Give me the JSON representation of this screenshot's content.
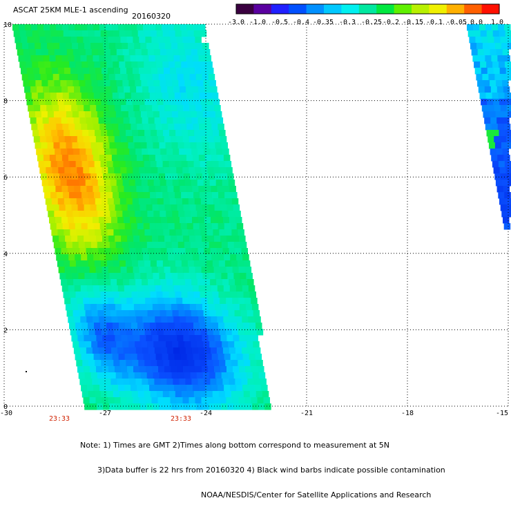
{
  "header": {
    "title": "ASCAT 25KM MLE-1 ascending",
    "date": "20160320"
  },
  "colorbar": {
    "tick_labels": [
      "-3.0",
      "-1.0",
      "-0.5",
      "-0.4",
      "-0.35",
      "-0.3",
      "-0.25",
      "-0.2",
      "-0.15",
      "-0.1",
      "-0.05",
      "0.0",
      "1.0"
    ],
    "colors": [
      "#3a0040",
      "#5a00a0",
      "#2020ff",
      "#0050ff",
      "#0090ff",
      "#00c8ff",
      "#00f0f0",
      "#00e8a0",
      "#00e840",
      "#60f000",
      "#b8f000",
      "#f0f000",
      "#ffb000",
      "#ff6000",
      "#ff1000"
    ]
  },
  "map": {
    "x_tick_labels": [
      "-30",
      "-27",
      "-24",
      "-21",
      "-18",
      "-15"
    ],
    "y_tick_labels": [
      "0",
      "2",
      "4",
      "6",
      "8",
      "10"
    ],
    "time_labels": [
      "23:33",
      "23:33"
    ],
    "lon_range": [
      -30,
      -15
    ],
    "lat_range": [
      0,
      10
    ],
    "gridlines": "dotted"
  },
  "note": {
    "line1": "Note: 1) Times are GMT 2)Times along bottom correspond to measurement at 5N",
    "line2": "3)Data buffer is 22 hrs from 20160320 4) Black wind barbs indicate possible contamination",
    "line3": "NOAA/NESDIS/Center for Satellite Applications and Research"
  }
}
